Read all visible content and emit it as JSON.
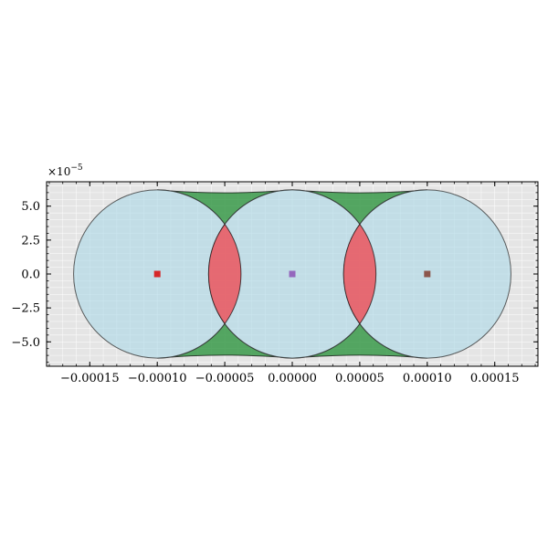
{
  "chart_data": {
    "type": "scatter",
    "title": "",
    "xlabel": "",
    "ylabel": "",
    "xlim": [
      -0.000182,
      0.000182
    ],
    "ylim": [
      -6.8e-05,
      6.8e-05
    ],
    "grid": true,
    "legend": "none",
    "y_offset_label": "×10",
    "y_offset_exponent": "−5",
    "x_ticks": [
      {
        "value": -0.00015,
        "label": "−0.00015"
      },
      {
        "value": -0.0001,
        "label": "−0.00010"
      },
      {
        "value": -5e-05,
        "label": "−0.00005"
      },
      {
        "value": 0.0,
        "label": "0.00000"
      },
      {
        "value": 5e-05,
        "label": "0.00005"
      },
      {
        "value": 0.0001,
        "label": "0.00010"
      },
      {
        "value": 0.00015,
        "label": "0.00015"
      }
    ],
    "y_ticks": [
      {
        "value": 5e-05,
        "label": "5.0"
      },
      {
        "value": 2.5e-05,
        "label": "2.5"
      },
      {
        "value": 0.0,
        "label": "0.0"
      },
      {
        "value": -2.5e-05,
        "label": "−2.5"
      },
      {
        "value": -5e-05,
        "label": "−5.0"
      }
    ],
    "circles": [
      {
        "cx": -0.0001,
        "cy": 0.0,
        "r": 6.2e-05,
        "color": "#add8e6"
      },
      {
        "cx": 0.0,
        "cy": 0.0,
        "r": 6.2e-05,
        "color": "#add8e6"
      },
      {
        "cx": 0.0001,
        "cy": 0.0,
        "r": 6.2e-05,
        "color": "#add8e6"
      }
    ],
    "centers": [
      {
        "x": -0.0001,
        "y": 0.0,
        "color": "#d62728"
      },
      {
        "x": 0.0,
        "y": 0.0,
        "color": "#9467bd"
      },
      {
        "x": 0.0001,
        "y": 0.0,
        "color": "#8c564b"
      }
    ],
    "overlap_color": "#e8636b",
    "gap_color": "#3a9a4a",
    "background_color": "#e5e5e5",
    "grid_color": "#ffffff"
  }
}
